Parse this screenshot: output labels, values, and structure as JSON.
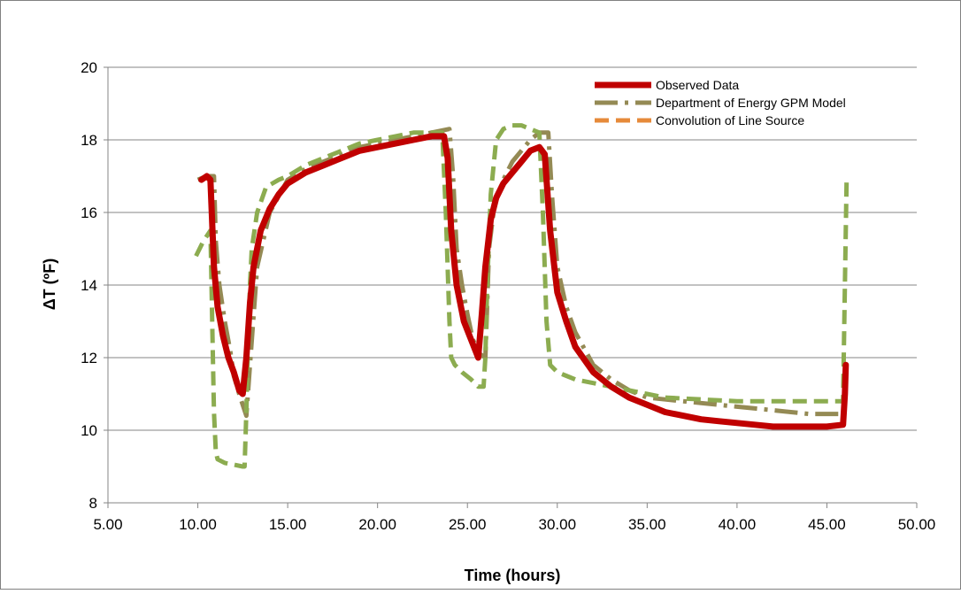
{
  "chart_data": {
    "type": "line",
    "title": "",
    "xlabel": "Time (hours)",
    "ylabel": "ΔT (ºF)",
    "xlim": [
      5,
      50
    ],
    "ylim": [
      8,
      20
    ],
    "xticks": [
      "5.00",
      "10.00",
      "15.00",
      "20.00",
      "25.00",
      "30.00",
      "35.00",
      "40.00",
      "45.00",
      "50.00"
    ],
    "yticks": [
      "8",
      "10",
      "12",
      "14",
      "16",
      "18",
      "20"
    ],
    "grid": "horizontal",
    "legend_position": "top-right",
    "series": [
      {
        "name": "Observed Data",
        "color": "#c00000",
        "style": "solid",
        "x": [
          10.2,
          10.5,
          10.7,
          10.9,
          11.1,
          11.4,
          11.7,
          12.0,
          12.3,
          12.5,
          12.7,
          12.9,
          13.1,
          13.5,
          14.0,
          14.5,
          15.0,
          16.0,
          17.0,
          18.0,
          19.0,
          20.0,
          21.0,
          22.0,
          23.0,
          23.7,
          23.9,
          24.1,
          24.4,
          24.8,
          25.2,
          25.6,
          25.8,
          26.0,
          26.3,
          26.6,
          27.0,
          27.5,
          28.0,
          28.5,
          29.0,
          29.3,
          29.6,
          30.0,
          30.5,
          31.0,
          32.0,
          33.0,
          34.0,
          35.0,
          36.0,
          37.0,
          38.0,
          39.0,
          40.0,
          41.0,
          42.0,
          43.0,
          44.0,
          45.0,
          45.9,
          46.0,
          46.05
        ],
        "y": [
          16.9,
          17.0,
          16.9,
          14.5,
          13.4,
          12.6,
          12.0,
          11.6,
          11.1,
          11.0,
          12.0,
          13.5,
          14.5,
          15.5,
          16.1,
          16.5,
          16.8,
          17.1,
          17.3,
          17.5,
          17.7,
          17.8,
          17.9,
          18.0,
          18.1,
          18.1,
          17.5,
          15.5,
          14.0,
          13.0,
          12.5,
          12.0,
          13.2,
          14.5,
          15.8,
          16.4,
          16.8,
          17.1,
          17.4,
          17.7,
          17.8,
          17.6,
          15.5,
          13.8,
          13.0,
          12.3,
          11.6,
          11.2,
          10.9,
          10.7,
          10.5,
          10.4,
          10.3,
          10.25,
          10.2,
          10.15,
          10.1,
          10.1,
          10.1,
          10.1,
          10.15,
          11.0,
          11.8
        ]
      },
      {
        "name": "Department of Energy GPM Model",
        "color": "#948a54",
        "style": "dash-dot",
        "x": [
          10.0,
          10.5,
          10.9,
          11.0,
          11.2,
          11.5,
          11.8,
          12.0,
          12.3,
          12.5,
          12.7,
          12.9,
          13.3,
          14.0,
          15.0,
          16.0,
          17.0,
          18.0,
          19.0,
          20.0,
          21.0,
          22.0,
          23.0,
          24.0,
          24.2,
          24.4,
          24.7,
          25.0,
          25.3,
          25.7,
          26.0,
          26.1,
          26.2,
          26.5,
          27.0,
          27.5,
          28.0,
          28.5,
          29.0,
          29.5,
          29.7,
          30.0,
          30.5,
          31.0,
          32.0,
          33.0,
          34.0,
          35.0,
          36.0,
          37.0,
          38.0,
          39.0,
          40.0,
          41.0,
          42.0,
          43.0,
          44.0,
          45.0,
          46.0
        ],
        "y": [
          16.9,
          17.0,
          17.0,
          15.2,
          14.0,
          13.0,
          12.2,
          11.5,
          11.0,
          10.7,
          10.4,
          11.8,
          14.5,
          16.0,
          16.9,
          17.2,
          17.4,
          17.6,
          17.8,
          17.9,
          18.0,
          18.1,
          18.2,
          18.3,
          17.0,
          15.0,
          14.0,
          13.2,
          12.5,
          12.1,
          12.0,
          13.5,
          15.0,
          16.2,
          16.9,
          17.4,
          17.7,
          18.0,
          18.2,
          18.2,
          16.5,
          14.5,
          13.4,
          12.7,
          11.8,
          11.4,
          11.1,
          10.9,
          10.85,
          10.8,
          10.75,
          10.7,
          10.65,
          10.6,
          10.55,
          10.5,
          10.45,
          10.45,
          10.45
        ]
      },
      {
        "name": "Convolution of Line Source",
        "color": "#e68a3a",
        "style": "dashed",
        "x": [],
        "y": []
      },
      {
        "name": "",
        "color": "#8cac50",
        "style": "dashed",
        "x": [
          9.9,
          10.3,
          10.7,
          10.8,
          10.9,
          11.0,
          11.1,
          11.5,
          12.0,
          12.5,
          12.6,
          12.7,
          12.8,
          12.9,
          13.0,
          13.3,
          13.8,
          14.5,
          15.0,
          16.0,
          17.0,
          18.0,
          19.0,
          20.0,
          21.0,
          22.0,
          23.0,
          23.6,
          23.8,
          24.0,
          24.1,
          24.3,
          24.7,
          25.2,
          25.6,
          25.9,
          26.0,
          26.1,
          26.3,
          26.6,
          27.0,
          27.5,
          28.0,
          28.5,
          29.0,
          29.2,
          29.4,
          29.6,
          30.0,
          30.5,
          31.0,
          32.0,
          33.0,
          34.0,
          35.0,
          36.0,
          38.0,
          40.0,
          42.0,
          44.0,
          45.5,
          45.9,
          46.0,
          46.1
        ],
        "y": [
          14.8,
          15.2,
          15.5,
          13.0,
          10.5,
          9.4,
          9.2,
          9.1,
          9.05,
          9.0,
          9.0,
          10.5,
          12.5,
          14.0,
          15.0,
          16.0,
          16.7,
          16.9,
          17.0,
          17.3,
          17.5,
          17.7,
          17.9,
          18.0,
          18.1,
          18.2,
          18.2,
          18.2,
          16.0,
          13.0,
          12.0,
          11.8,
          11.6,
          11.4,
          11.2,
          11.2,
          12.0,
          14.0,
          16.5,
          18.0,
          18.3,
          18.4,
          18.4,
          18.3,
          18.2,
          16.0,
          13.0,
          11.8,
          11.6,
          11.5,
          11.4,
          11.3,
          11.2,
          11.1,
          11.0,
          10.9,
          10.85,
          10.8,
          10.8,
          10.8,
          10.8,
          10.8,
          14.0,
          17.0
        ]
      }
    ]
  }
}
